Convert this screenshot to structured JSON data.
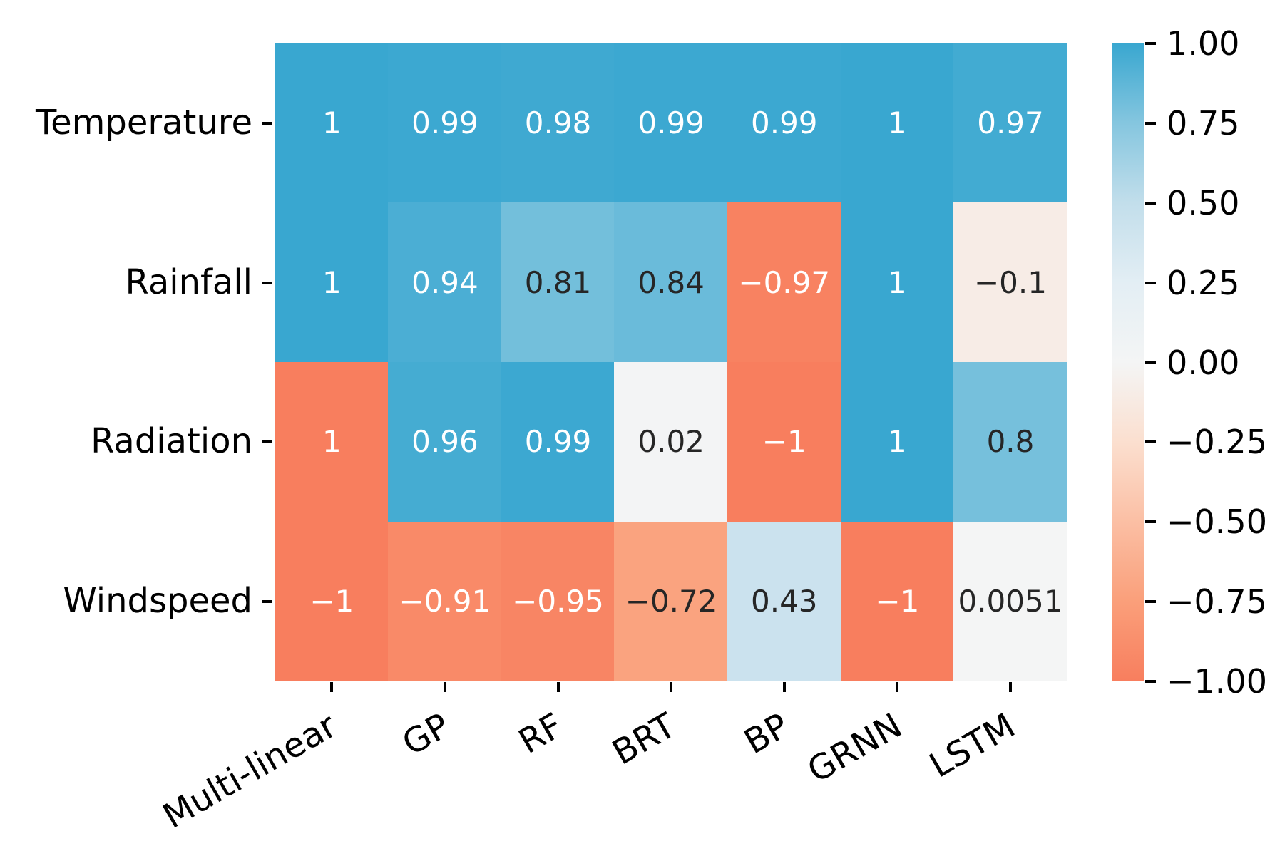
{
  "chart_data": {
    "type": "heatmap",
    "title": "",
    "xlabel": "",
    "ylabel": "",
    "rows": [
      "Temperature",
      "Rainfall",
      "Radiation",
      "Windspeed"
    ],
    "columns": [
      "Multi-linear",
      "GP",
      "RF",
      "BRT",
      "BP",
      "GRNN",
      "LSTM"
    ],
    "cells": [
      [
        {
          "label": "1",
          "value": 1
        },
        {
          "label": "0.99",
          "value": 0.99
        },
        {
          "label": "0.98",
          "value": 0.98
        },
        {
          "label": "0.99",
          "value": 0.99
        },
        {
          "label": "0.99",
          "value": 0.99
        },
        {
          "label": "1",
          "value": 1
        },
        {
          "label": "0.97",
          "value": 0.97
        }
      ],
      [
        {
          "label": "1",
          "value": 1
        },
        {
          "label": "0.94",
          "value": 0.94
        },
        {
          "label": "0.81",
          "value": 0.81
        },
        {
          "label": "0.84",
          "value": 0.84
        },
        {
          "label": "−0.97",
          "value": -0.97
        },
        {
          "label": "1",
          "value": 1
        },
        {
          "label": "−0.1",
          "value": -0.1
        }
      ],
      [
        {
          "label": "1",
          "value": 1,
          "color_value": -1
        },
        {
          "label": "0.96",
          "value": 0.96
        },
        {
          "label": "0.99",
          "value": 0.99
        },
        {
          "label": "0.02",
          "value": 0.02
        },
        {
          "label": "−1",
          "value": -1
        },
        {
          "label": "1",
          "value": 1
        },
        {
          "label": "0.8",
          "value": 0.8
        }
      ],
      [
        {
          "label": "−1",
          "value": -1
        },
        {
          "label": "−0.91",
          "value": -0.91
        },
        {
          "label": "−0.95",
          "value": -0.95
        },
        {
          "label": "−0.72",
          "value": -0.72
        },
        {
          "label": "0.43",
          "value": 0.43
        },
        {
          "label": "−1",
          "value": -1
        },
        {
          "label": "0.0051",
          "value": 0.0051
        }
      ]
    ],
    "colorbar": {
      "position": "right",
      "vmin": -1,
      "vmax": 1,
      "tick_labels": [
        "1.00",
        "0.75",
        "0.50",
        "0.25",
        "0.00",
        "−0.25",
        "−0.50",
        "−0.75",
        "−1.00"
      ],
      "tick_values": [
        1,
        0.75,
        0.5,
        0.25,
        0,
        -0.25,
        -0.5,
        -0.75,
        -1
      ]
    },
    "colormap_stops": [
      {
        "v": 1,
        "c": "#39A7D0"
      },
      {
        "v": 0.75,
        "c": "#85C6DF"
      },
      {
        "v": 0.5,
        "c": "#C2DEEB"
      },
      {
        "v": 0.25,
        "c": "#E3EEF4"
      },
      {
        "v": 0,
        "c": "#F4F5F5"
      },
      {
        "v": -0.25,
        "c": "#FBDFCF"
      },
      {
        "v": -0.5,
        "c": "#FBBFA4"
      },
      {
        "v": -0.75,
        "c": "#FA9F7A"
      },
      {
        "v": -1,
        "c": "#F87E5E"
      }
    ],
    "annotation_text_colors": {
      "light": "#FFFFFF",
      "dark": "#262626"
    },
    "grid": false
  }
}
